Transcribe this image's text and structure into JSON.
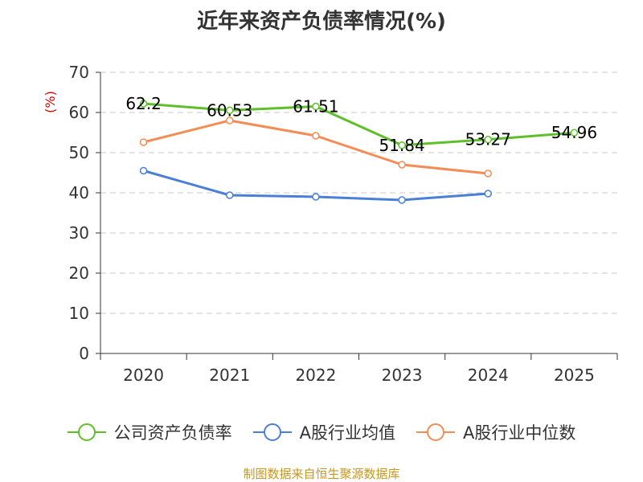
{
  "colors": {
    "series1": "#5dc02a",
    "series2": "#4a7fd8",
    "series3": "#f58b55",
    "y_unit": "#d40000",
    "source": "#c8961e"
  },
  "source_note": "制图数据来自恒生聚源数据库",
  "chart_data": {
    "type": "line",
    "title": "近年来资产负债率情况(%)",
    "ylabel": "(%)",
    "xlabel": "",
    "ylim": [
      0,
      70
    ],
    "yticks": [
      0,
      10,
      20,
      30,
      40,
      50,
      60,
      70
    ],
    "categories": [
      "2020",
      "2021",
      "2022",
      "2023",
      "2024",
      "2025"
    ],
    "grid": true,
    "legend_position": "bottom",
    "series": [
      {
        "name": "公司资产负债率",
        "color_key": "series1",
        "values": [
          62.2,
          60.53,
          61.51,
          51.84,
          53.27,
          54.96
        ],
        "labels": [
          "62.2",
          "60.53",
          "61.51",
          "51.84",
          "53.27",
          "54.96"
        ]
      },
      {
        "name": "A股行业均值",
        "color_key": "series2",
        "values": [
          45.5,
          39.4,
          39.0,
          38.2,
          39.8,
          null
        ]
      },
      {
        "name": "A股行业中位数",
        "color_key": "series3",
        "values": [
          52.6,
          58.0,
          54.2,
          47.0,
          44.8,
          null
        ]
      }
    ]
  }
}
